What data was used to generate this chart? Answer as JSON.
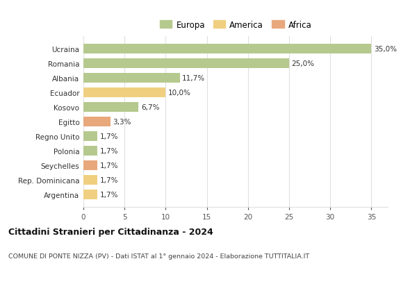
{
  "categories": [
    "Argentina",
    "Rep. Dominicana",
    "Seychelles",
    "Polonia",
    "Regno Unito",
    "Egitto",
    "Kosovo",
    "Ecuador",
    "Albania",
    "Romania",
    "Ucraina"
  ],
  "values": [
    1.7,
    1.7,
    1.7,
    1.7,
    1.7,
    3.3,
    6.7,
    10.0,
    11.7,
    25.0,
    35.0
  ],
  "continents": [
    "America",
    "America",
    "Africa",
    "Europa",
    "Europa",
    "Africa",
    "Europa",
    "America",
    "Europa",
    "Europa",
    "Europa"
  ],
  "colors": {
    "Europa": "#b5c98e",
    "America": "#f0d080",
    "Africa": "#e8a87c"
  },
  "legend_items": [
    "Europa",
    "America",
    "Africa"
  ],
  "legend_colors": [
    "#b5c98e",
    "#f0d080",
    "#e8a87c"
  ],
  "title": "Cittadini Stranieri per Cittadinanza - 2024",
  "subtitle": "COMUNE DI PONTE NIZZA (PV) - Dati ISTAT al 1° gennaio 2024 - Elaborazione TUTTITALIA.IT",
  "xlim": [
    0,
    37
  ],
  "xticks": [
    0,
    5,
    10,
    15,
    20,
    25,
    30,
    35
  ],
  "bg_color": "#ffffff",
  "grid_color": "#e0e0e0"
}
